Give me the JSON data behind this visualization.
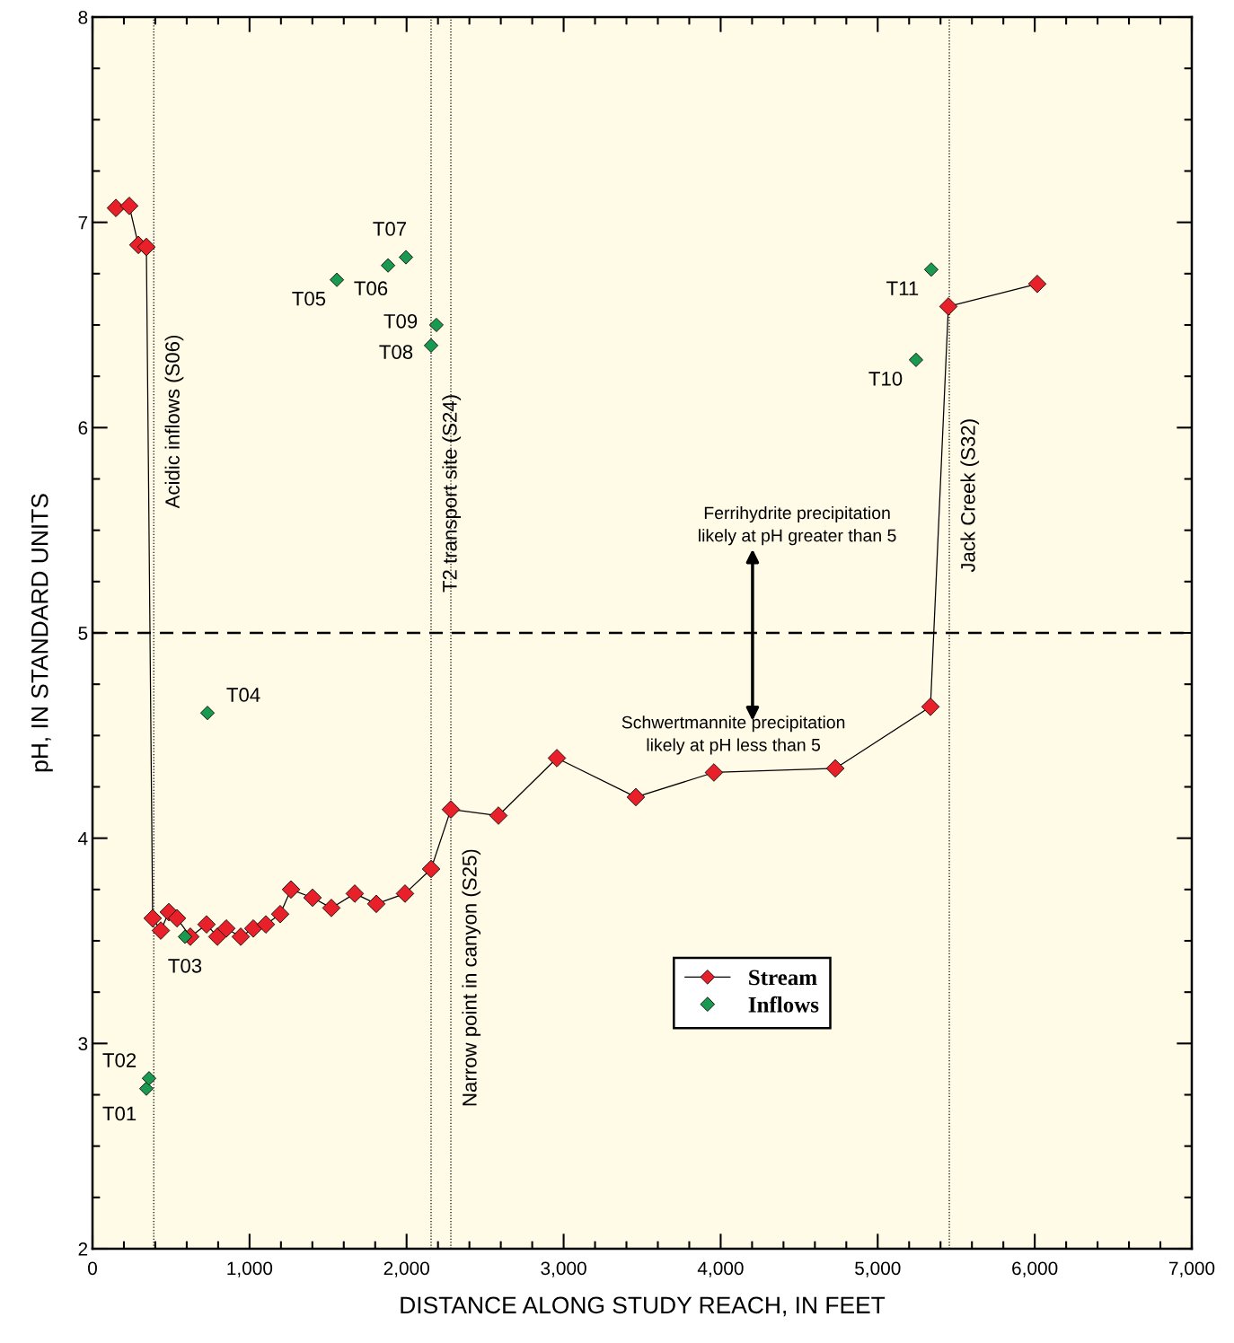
{
  "chart_data": {
    "type": "line",
    "xlabel": "DISTANCE ALONG STUDY REACH, IN FEET",
    "ylabel": "pH, IN STANDARD UNITS",
    "xlim": [
      0,
      7000
    ],
    "xticks": [
      {
        "value": 0,
        "label": "0"
      },
      {
        "value": 1000,
        "label": "1,000"
      },
      {
        "value": 2000,
        "label": "2,000"
      },
      {
        "value": 3000,
        "label": "3,000"
      },
      {
        "value": 4000,
        "label": "4,000"
      },
      {
        "value": 5000,
        "label": "5,000"
      },
      {
        "value": 6000,
        "label": "6,000"
      },
      {
        "value": 7000,
        "label": "7,000"
      }
    ],
    "ylim": [
      2,
      8
    ],
    "yticks": [
      2,
      3,
      4,
      5,
      6,
      7,
      8
    ],
    "grid": false,
    "legend": "bottom",
    "marker": "diamond",
    "line_style": "solid",
    "series": [
      {
        "name": "Stream",
        "color": "#e8202a",
        "x": [
          149,
          234,
          292,
          343,
          383,
          435,
          486,
          538,
          623,
          726,
          795,
          852,
          944,
          1024,
          1104,
          1195,
          1264,
          1401,
          1521,
          1670,
          1807,
          1990,
          2156,
          2282,
          2585,
          2957,
          3460,
          3957,
          4730,
          5336,
          5450,
          6016
        ],
        "values": [
          7.07,
          7.08,
          6.89,
          6.88,
          3.61,
          3.55,
          3.64,
          3.61,
          3.52,
          3.58,
          3.52,
          3.56,
          3.52,
          3.56,
          3.58,
          3.63,
          3.75,
          3.71,
          3.66,
          3.73,
          3.68,
          3.73,
          3.85,
          4.14,
          4.11,
          4.39,
          4.2,
          4.32,
          4.34,
          4.64,
          6.59,
          6.7
        ]
      },
      {
        "name": "Inflows",
        "type": "scatter",
        "color": "#1a9a50",
        "x": [
          343,
          360,
          589,
          732,
          1556,
          1882,
          1996,
          2156,
          2190,
          5244,
          5341
        ],
        "values": [
          2.78,
          2.83,
          3.52,
          4.61,
          6.72,
          6.79,
          6.83,
          6.4,
          6.5,
          6.33,
          6.77
        ]
      }
    ],
    "ref_lines": [
      {
        "axis": "x",
        "value": 390,
        "label": "Acidic inflows (S06)",
        "line_style": "dotted",
        "color": "#000000"
      },
      {
        "axis": "x",
        "value": 2156,
        "label": "T2 transport site (S24)",
        "line_style": "dotted",
        "color": "#000000"
      },
      {
        "axis": "x",
        "value": 2282,
        "label": "Narrow point in canyon (S25)",
        "line_style": "dotted",
        "color": "#000000"
      },
      {
        "axis": "x",
        "value": 5456,
        "label": "Jack Creek (S32)",
        "line_style": "dotted",
        "color": "#000000"
      },
      {
        "axis": "y",
        "value": 5,
        "line_style": "dashed",
        "color": "#000000"
      }
    ],
    "annotations": [
      {
        "text": "T01",
        "x": 343,
        "y": 2.78
      },
      {
        "text": "T02",
        "x": 360,
        "y": 2.83
      },
      {
        "text": "T03",
        "x": 589,
        "y": 3.52
      },
      {
        "text": "T04",
        "x": 732,
        "y": 4.61
      },
      {
        "text": "T05",
        "x": 1556,
        "y": 6.72
      },
      {
        "text": "T06",
        "x": 1882,
        "y": 6.79
      },
      {
        "text": "T07",
        "x": 1996,
        "y": 6.83
      },
      {
        "text": "T08",
        "x": 2156,
        "y": 6.4
      },
      {
        "text": "T09",
        "x": 2190,
        "y": 6.5
      },
      {
        "text": "T10",
        "x": 5244,
        "y": 6.33
      },
      {
        "text": "T11",
        "x": 5341,
        "y": 6.77
      },
      "Ferrihydrite precipitation\nlikely at pH greater than 5",
      "Schwertmannite precipitation\nlikely at pH less than 5"
    ]
  }
}
